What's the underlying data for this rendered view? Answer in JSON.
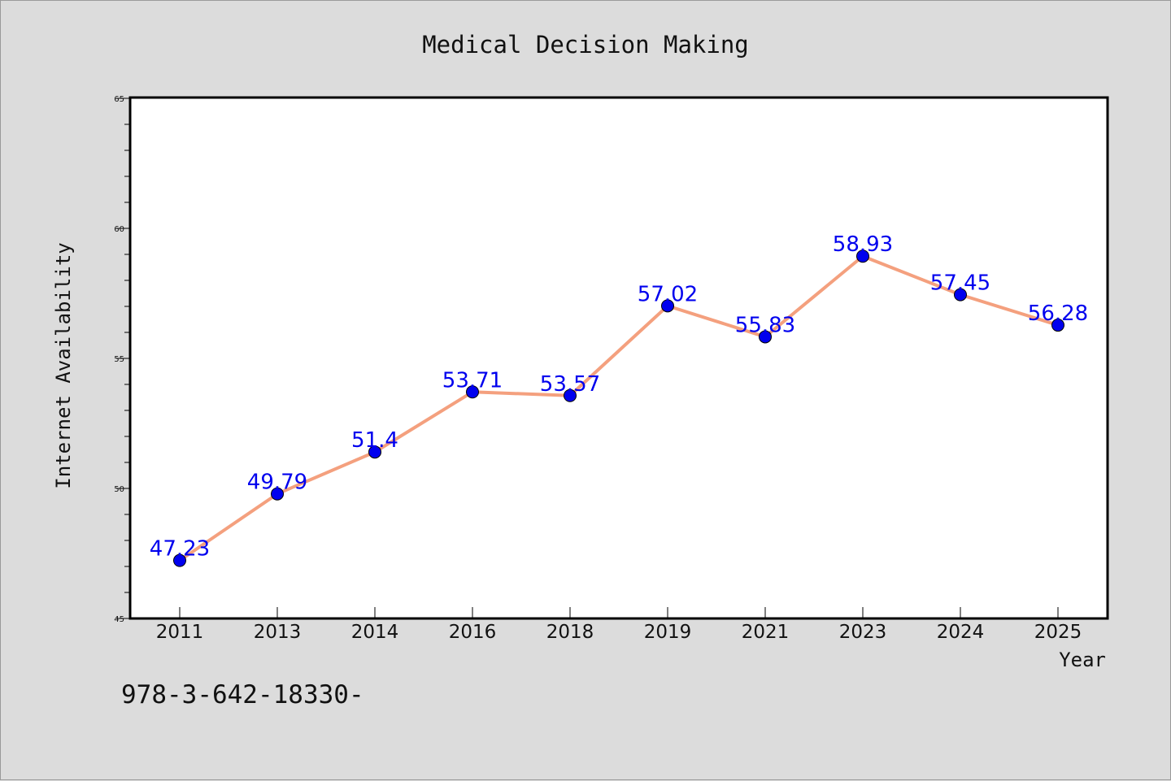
{
  "chart_data": {
    "type": "line",
    "title": "Medical Decision Making",
    "xlabel": "Year",
    "ylabel": "Internet Availability",
    "categories": [
      "2011",
      "2013",
      "2014",
      "2016",
      "2018",
      "2019",
      "2021",
      "2023",
      "2024",
      "2025"
    ],
    "series": [
      {
        "values": [
          47.23,
          49.79,
          51.4,
          53.71,
          53.57,
          57.02,
          55.83,
          58.93,
          57.45,
          56.28
        ],
        "data_labels": [
          "47.23",
          "49.79",
          "51.4",
          "53.71",
          "53.57",
          "57.02",
          "55.83",
          "58.93",
          "57.45",
          "56.28"
        ],
        "line_color": "#f4a07e",
        "marker_color": "#0000ee",
        "label_color": "#0000ee"
      }
    ],
    "ylim": [
      45,
      65
    ],
    "yticks": [
      "45",
      "50",
      "55",
      "60",
      "65"
    ],
    "grid": false,
    "legend": "none"
  },
  "footnote": "978-3-642-18330-"
}
